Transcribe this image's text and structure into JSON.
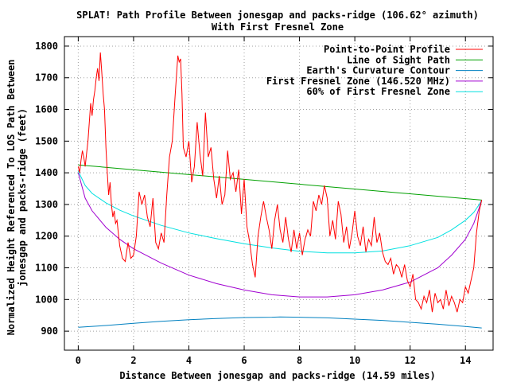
{
  "chart_data": {
    "type": "line",
    "title": "SPLAT! Path Profile Between jonesgap and packs-ridge (106.62° azimuth)",
    "subtitle": "With First Fresnel Zone",
    "xlabel": "Distance Between jonesgap and packs-ridge (14.59 miles)",
    "ylabel_line1": "Normalized Height Referenced To LOS Path Between",
    "ylabel_line2": "jonesgap and packs-ridge (feet)",
    "xlim": [
      -0.5,
      15
    ],
    "ylim": [
      840,
      1830
    ],
    "xticks": [
      0,
      2,
      4,
      6,
      8,
      10,
      12,
      14
    ],
    "yticks": [
      900,
      1000,
      1100,
      1200,
      1300,
      1400,
      1500,
      1600,
      1700,
      1800
    ],
    "grid": true,
    "legend_position": "top-right",
    "series": [
      {
        "name": "Point-to-Point Profile",
        "color": "#ff0000",
        "x": [
          0.0,
          0.05,
          0.1,
          0.15,
          0.2,
          0.25,
          0.3,
          0.35,
          0.4,
          0.45,
          0.5,
          0.55,
          0.6,
          0.65,
          0.7,
          0.75,
          0.8,
          0.85,
          0.9,
          0.95,
          1.0,
          1.05,
          1.1,
          1.15,
          1.2,
          1.25,
          1.3,
          1.35,
          1.4,
          1.5,
          1.6,
          1.7,
          1.8,
          1.9,
          2.0,
          2.1,
          2.2,
          2.3,
          2.4,
          2.5,
          2.6,
          2.7,
          2.8,
          2.9,
          3.0,
          3.1,
          3.2,
          3.3,
          3.4,
          3.5,
          3.6,
          3.65,
          3.7,
          3.75,
          3.8,
          3.9,
          4.0,
          4.1,
          4.2,
          4.3,
          4.4,
          4.5,
          4.6,
          4.7,
          4.8,
          4.9,
          5.0,
          5.1,
          5.2,
          5.3,
          5.4,
          5.5,
          5.6,
          5.7,
          5.8,
          5.9,
          6.0,
          6.1,
          6.2,
          6.3,
          6.4,
          6.5,
          6.6,
          6.7,
          6.8,
          6.9,
          7.0,
          7.1,
          7.2,
          7.3,
          7.4,
          7.5,
          7.6,
          7.7,
          7.8,
          7.9,
          8.0,
          8.1,
          8.2,
          8.3,
          8.4,
          8.5,
          8.6,
          8.7,
          8.8,
          8.9,
          9.0,
          9.1,
          9.2,
          9.3,
          9.4,
          9.5,
          9.6,
          9.7,
          9.8,
          9.9,
          10.0,
          10.1,
          10.2,
          10.3,
          10.4,
          10.5,
          10.6,
          10.7,
          10.8,
          10.9,
          11.0,
          11.1,
          11.2,
          11.3,
          11.4,
          11.5,
          11.6,
          11.7,
          11.8,
          11.9,
          12.0,
          12.1,
          12.2,
          12.3,
          12.4,
          12.5,
          12.6,
          12.7,
          12.8,
          12.9,
          13.0,
          13.1,
          13.2,
          13.3,
          13.4,
          13.5,
          13.6,
          13.7,
          13.8,
          13.9,
          14.0,
          14.1,
          14.2,
          14.3,
          14.4,
          14.5,
          14.59
        ],
        "y": [
          1420,
          1400,
          1440,
          1470,
          1450,
          1420,
          1460,
          1500,
          1560,
          1620,
          1580,
          1630,
          1660,
          1700,
          1730,
          1690,
          1780,
          1720,
          1650,
          1600,
          1480,
          1400,
          1330,
          1370,
          1300,
          1260,
          1280,
          1240,
          1250,
          1170,
          1130,
          1120,
          1180,
          1130,
          1140,
          1200,
          1340,
          1300,
          1330,
          1260,
          1230,
          1320,
          1180,
          1160,
          1210,
          1180,
          1330,
          1450,
          1500,
          1640,
          1770,
          1750,
          1760,
          1650,
          1480,
          1450,
          1500,
          1370,
          1420,
          1560,
          1460,
          1390,
          1590,
          1450,
          1480,
          1380,
          1320,
          1390,
          1300,
          1330,
          1470,
          1380,
          1400,
          1340,
          1410,
          1270,
          1380,
          1230,
          1180,
          1110,
          1070,
          1200,
          1260,
          1310,
          1260,
          1220,
          1160,
          1250,
          1300,
          1220,
          1180,
          1260,
          1190,
          1150,
          1220,
          1160,
          1210,
          1140,
          1190,
          1220,
          1200,
          1310,
          1280,
          1330,
          1300,
          1360,
          1320,
          1200,
          1250,
          1190,
          1310,
          1270,
          1180,
          1230,
          1160,
          1210,
          1280,
          1200,
          1170,
          1230,
          1150,
          1190,
          1170,
          1260,
          1180,
          1210,
          1150,
          1120,
          1110,
          1130,
          1080,
          1110,
          1100,
          1070,
          1110,
          1060,
          1040,
          1080,
          1000,
          990,
          970,
          1010,
          990,
          1030,
          960,
          1020,
          990,
          1000,
          970,
          1030,
          980,
          1010,
          990,
          960,
          1000,
          990,
          1040,
          1020,
          1060,
          1100,
          1210,
          1280,
          1314
        ]
      },
      {
        "name": "Line of Sight Path",
        "color": "#00a000",
        "x": [
          0.0,
          14.59
        ],
        "y": [
          1425,
          1314
        ]
      },
      {
        "name": "Earth's Curvature Contour",
        "color": "#0080c0",
        "x": [
          0.0,
          1.0,
          2.0,
          3.0,
          4.0,
          5.0,
          6.0,
          7.0,
          7.3,
          8.0,
          9.0,
          10.0,
          11.0,
          12.0,
          13.0,
          14.0,
          14.59
        ],
        "y": [
          912,
          918,
          925,
          931,
          936,
          940,
          943,
          944,
          945,
          944,
          942,
          938,
          934,
          928,
          922,
          915,
          910
        ]
      },
      {
        "name": "First Fresnel Zone (146.520 MHz)",
        "color": "#a000d0",
        "x": [
          0.0,
          0.25,
          0.5,
          1.0,
          1.5,
          2.0,
          3.0,
          4.0,
          5.0,
          6.0,
          7.0,
          8.0,
          9.0,
          10.0,
          11.0,
          12.0,
          13.0,
          13.5,
          14.0,
          14.3,
          14.5,
          14.59
        ],
        "y": [
          1400,
          1320,
          1280,
          1228,
          1190,
          1160,
          1115,
          1077,
          1050,
          1030,
          1015,
          1008,
          1008,
          1015,
          1030,
          1055,
          1100,
          1140,
          1190,
          1240,
          1290,
          1314
        ]
      },
      {
        "name": "60% of First Fresnel Zone",
        "color": "#00e0e0",
        "x": [
          0.0,
          0.25,
          0.5,
          1.0,
          1.5,
          2.0,
          3.0,
          4.0,
          5.0,
          6.0,
          7.0,
          8.0,
          9.0,
          10.0,
          11.0,
          12.0,
          13.0,
          13.5,
          14.0,
          14.3,
          14.5,
          14.59
        ],
        "y": [
          1405,
          1360,
          1335,
          1305,
          1282,
          1264,
          1234,
          1210,
          1192,
          1176,
          1163,
          1152,
          1147,
          1147,
          1153,
          1170,
          1196,
          1220,
          1250,
          1275,
          1300,
          1314
        ]
      }
    ]
  }
}
